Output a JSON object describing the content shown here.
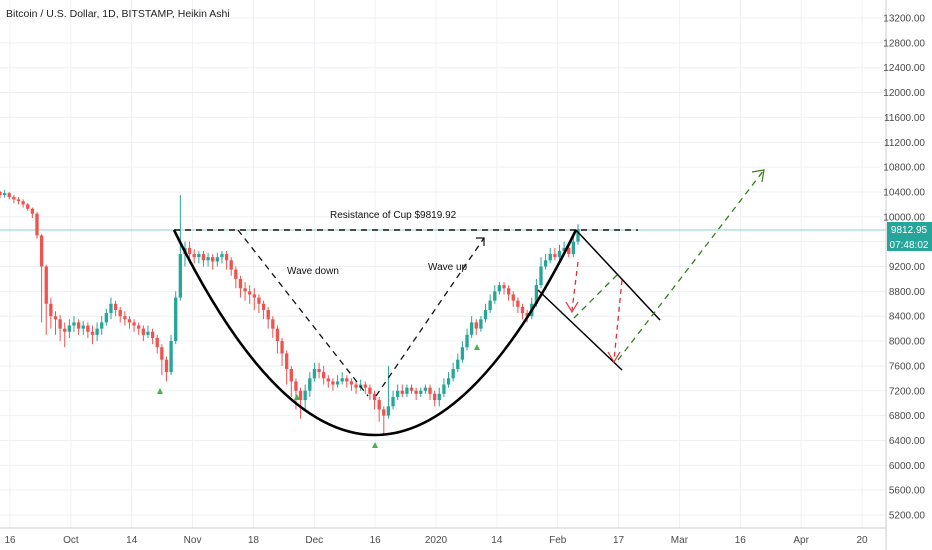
{
  "header": {
    "title": "Bitcoin / U.S. Dollar, 1D, BITSTAMP, Heikin Ashi"
  },
  "colors": {
    "up": "#26a69a",
    "down": "#ef5350",
    "badge": "#26a69a",
    "grid": "#eef0f3",
    "projection_up": "#3a7d1e",
    "projection_down": "#e03131",
    "marker": "#4caf50"
  },
  "price_axis": {
    "ticks": [
      "13200.00",
      "12800.00",
      "12400.00",
      "12000.00",
      "11600.00",
      "11200.00",
      "10800.00",
      "10400.00",
      "10000.00",
      "9600.00",
      "9200.00",
      "8800.00",
      "8400.00",
      "8000.00",
      "7600.00",
      "7200.00",
      "6800.00",
      "6400.00",
      "6000.00",
      "5600.00",
      "5200.00"
    ],
    "last_price": "9812.95",
    "countdown": "07:48:02"
  },
  "time_axis": {
    "ticks": [
      "16",
      "Oct",
      "14",
      "Nov",
      "18",
      "Dec",
      "16",
      "2020",
      "14",
      "Feb",
      "17",
      "Mar",
      "16",
      "Apr",
      "20"
    ]
  },
  "annotations": {
    "resistance": "Resistance of Cup $9819.92",
    "wave_down": "Wave down",
    "wave_up": "Wave up"
  },
  "chart_data": {
    "type": "candlestick",
    "title": "Bitcoin / U.S. Dollar, 1D, BITSTAMP, Heikin Ashi",
    "ylim": [
      5000,
      13400
    ],
    "resistance_level": 9819.92,
    "last_price": 9812.95,
    "x_ticks": [
      "16",
      "Oct",
      "14",
      "Nov",
      "18",
      "Dec",
      "16",
      "2020",
      "14",
      "Feb",
      "17",
      "Mar",
      "16",
      "Apr",
      "20"
    ],
    "y_ticks": [
      13200,
      12800,
      12400,
      12000,
      11600,
      11200,
      10800,
      10400,
      10000,
      9600,
      9200,
      8800,
      8400,
      8000,
      7600,
      7200,
      6800,
      6400,
      6000,
      5600,
      5200
    ],
    "candles": [
      [
        10400,
        10350,
        10420,
        10300
      ],
      [
        10350,
        10380,
        10430,
        10310
      ],
      [
        10380,
        10320,
        10400,
        10280
      ],
      [
        10320,
        10280,
        10350,
        10220
      ],
      [
        10280,
        10250,
        10320,
        10200
      ],
      [
        10250,
        10200,
        10280,
        10150
      ],
      [
        10200,
        10130,
        10220,
        10100
      ],
      [
        10130,
        10050,
        10150,
        9980
      ],
      [
        10050,
        9700,
        10080,
        9650
      ],
      [
        9700,
        9200,
        9720,
        8300
      ],
      [
        9200,
        8600,
        9230,
        8100
      ],
      [
        8600,
        8400,
        8700,
        8200
      ],
      [
        8400,
        8350,
        8480,
        8100
      ],
      [
        8350,
        8200,
        8420,
        8000
      ],
      [
        8200,
        8150,
        8300,
        7900
      ],
      [
        8150,
        8250,
        8350,
        8050
      ],
      [
        8250,
        8300,
        8400,
        8150
      ],
      [
        8300,
        8200,
        8350,
        8100
      ],
      [
        8200,
        8250,
        8320,
        8100
      ],
      [
        8250,
        8150,
        8300,
        8050
      ],
      [
        8150,
        8100,
        8250,
        7950
      ],
      [
        8100,
        8200,
        8300,
        8000
      ],
      [
        8200,
        8300,
        8400,
        8100
      ],
      [
        8300,
        8450,
        8520,
        8250
      ],
      [
        8450,
        8600,
        8700,
        8350
      ],
      [
        8600,
        8500,
        8650,
        8400
      ],
      [
        8500,
        8400,
        8550,
        8300
      ],
      [
        8400,
        8350,
        8480,
        8250
      ],
      [
        8350,
        8300,
        8400,
        8200
      ],
      [
        8300,
        8250,
        8350,
        8150
      ],
      [
        8250,
        8200,
        8300,
        8100
      ],
      [
        8200,
        8100,
        8250,
        8000
      ],
      [
        8100,
        8150,
        8250,
        8050
      ],
      [
        8150,
        8050,
        8200,
        7950
      ],
      [
        8050,
        7900,
        8100,
        7800
      ],
      [
        7900,
        7700,
        7950,
        7450
      ],
      [
        7700,
        7500,
        7750,
        7350
      ],
      [
        7500,
        8000,
        8100,
        7450
      ],
      [
        8000,
        8700,
        8800,
        7950
      ],
      [
        8700,
        9400,
        10350,
        8650
      ],
      [
        9400,
        9500,
        9600,
        9200
      ],
      [
        9500,
        9400,
        9600,
        9250
      ],
      [
        9400,
        9350,
        9480,
        9250
      ],
      [
        9350,
        9400,
        9450,
        9250
      ],
      [
        9400,
        9300,
        9450,
        9200
      ],
      [
        9300,
        9350,
        9420,
        9200
      ],
      [
        9350,
        9280,
        9400,
        9150
      ],
      [
        9280,
        9350,
        9420,
        9200
      ],
      [
        9350,
        9400,
        9450,
        9250
      ],
      [
        9400,
        9300,
        9450,
        9150
      ],
      [
        9300,
        9150,
        9350,
        9050
      ],
      [
        9150,
        9000,
        9200,
        8850
      ],
      [
        9000,
        8850,
        9050,
        8700
      ],
      [
        8850,
        8800,
        8950,
        8650
      ],
      [
        8800,
        8750,
        8900,
        8600
      ],
      [
        8750,
        8700,
        8850,
        8500
      ],
      [
        8700,
        8600,
        8750,
        8450
      ],
      [
        8600,
        8500,
        8650,
        8350
      ],
      [
        8500,
        8350,
        8550,
        8200
      ],
      [
        8350,
        8200,
        8400,
        8050
      ],
      [
        8200,
        8000,
        8250,
        7800
      ],
      [
        8000,
        7800,
        8050,
        7600
      ],
      [
        7800,
        7550,
        7850,
        7300
      ],
      [
        7550,
        7350,
        7600,
        7100
      ],
      [
        7350,
        7200,
        7400,
        6900
      ],
      [
        7200,
        7050,
        7250,
        6750
      ],
      [
        7050,
        7200,
        7300,
        6900
      ],
      [
        7200,
        7400,
        7500,
        7100
      ],
      [
        7400,
        7550,
        7650,
        7350
      ],
      [
        7550,
        7500,
        7650,
        7400
      ],
      [
        7500,
        7400,
        7600,
        7300
      ],
      [
        7400,
        7350,
        7450,
        7250
      ],
      [
        7350,
        7300,
        7400,
        7200
      ],
      [
        7300,
        7350,
        7450,
        7250
      ],
      [
        7350,
        7400,
        7500,
        7300
      ],
      [
        7400,
        7350,
        7450,
        7250
      ],
      [
        7350,
        7300,
        7400,
        7200
      ],
      [
        7300,
        7250,
        7350,
        7150
      ],
      [
        7250,
        7300,
        7380,
        7200
      ],
      [
        7300,
        7250,
        7350,
        7150
      ],
      [
        7250,
        7150,
        7300,
        7050
      ],
      [
        7150,
        7050,
        7200,
        6900
      ],
      [
        7050,
        6900,
        7100,
        6700
      ],
      [
        6900,
        6800,
        6950,
        6500
      ],
      [
        6800,
        6950,
        7600,
        6750
      ],
      [
        6950,
        7100,
        7200,
        6900
      ],
      [
        7100,
        7200,
        7300,
        7050
      ],
      [
        7200,
        7150,
        7300,
        7100
      ],
      [
        7150,
        7250,
        7300,
        7100
      ],
      [
        7250,
        7200,
        7300,
        7150
      ],
      [
        7200,
        7150,
        7250,
        7050
      ],
      [
        7150,
        7200,
        7250,
        7100
      ],
      [
        7200,
        7250,
        7300,
        7150
      ],
      [
        7250,
        7150,
        7300,
        7050
      ],
      [
        7150,
        7050,
        7200,
        6950
      ],
      [
        7050,
        7150,
        7250,
        6950
      ],
      [
        7150,
        7300,
        7400,
        7100
      ],
      [
        7300,
        7400,
        7500,
        7250
      ],
      [
        7400,
        7550,
        7650,
        7350
      ],
      [
        7550,
        7700,
        7800,
        7500
      ],
      [
        7700,
        7900,
        8000,
        7650
      ],
      [
        7900,
        8100,
        8200,
        7850
      ],
      [
        8100,
        8300,
        8400,
        8050
      ],
      [
        8300,
        8200,
        8350,
        8100
      ],
      [
        8200,
        8350,
        8400,
        8150
      ],
      [
        8350,
        8500,
        8600,
        8300
      ],
      [
        8500,
        8650,
        8750,
        8450
      ],
      [
        8650,
        8800,
        8900,
        8600
      ],
      [
        8800,
        8900,
        8950,
        8750
      ],
      [
        8900,
        8850,
        8950,
        8750
      ],
      [
        8850,
        8750,
        8900,
        8650
      ],
      [
        8750,
        8650,
        8800,
        8550
      ],
      [
        8650,
        8550,
        8700,
        8450
      ],
      [
        8550,
        8450,
        8600,
        8350
      ],
      [
        8450,
        8400,
        8500,
        8300
      ],
      [
        8400,
        8600,
        8700,
        8350
      ],
      [
        8600,
        8900,
        9000,
        8550
      ],
      [
        8900,
        9200,
        9350,
        8850
      ],
      [
        9200,
        9300,
        9400,
        9150
      ],
      [
        9300,
        9400,
        9500,
        9250
      ],
      [
        9400,
        9350,
        9500,
        9300
      ],
      [
        9350,
        9450,
        9550,
        9300
      ],
      [
        9450,
        9500,
        9600,
        9400
      ],
      [
        9500,
        9400,
        9600,
        9350
      ],
      [
        9400,
        9600,
        9700,
        9350
      ],
      [
        9600,
        9800,
        9880,
        9550
      ]
    ]
  }
}
